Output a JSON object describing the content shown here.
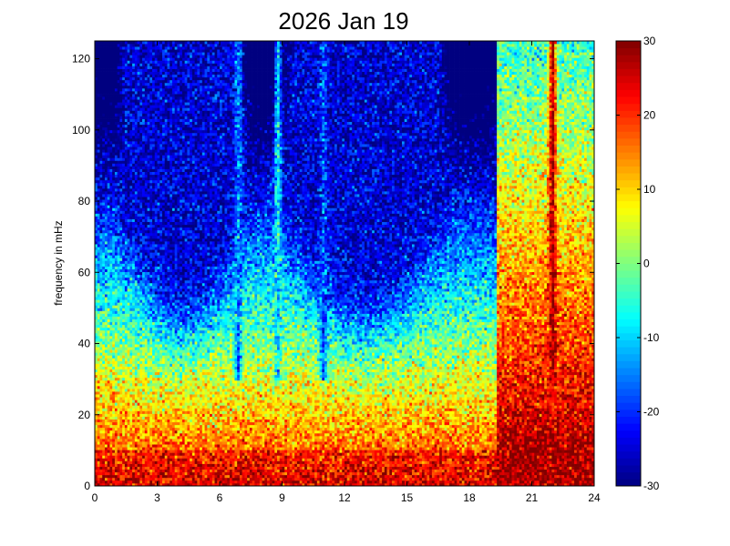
{
  "chart_data": {
    "type": "heatmap",
    "title": "2026 Jan 19",
    "xlabel": "",
    "ylabel": "frequency in mHz",
    "xlim": [
      0,
      24
    ],
    "ylim": [
      0,
      125
    ],
    "x_ticks": [
      "0",
      "3",
      "6",
      "9",
      "12",
      "15",
      "18",
      "21",
      "24"
    ],
    "y_ticks": [
      "0",
      "20",
      "40",
      "60",
      "80",
      "100",
      "120"
    ],
    "colorbar": {
      "range": [
        -30,
        30
      ],
      "ticks": [
        "-30",
        "-20",
        "-10",
        "0",
        "10",
        "20",
        "30"
      ],
      "colormap": "jet"
    },
    "grid": false,
    "x_range_hours": [
      0,
      24
    ],
    "y_range_mhz": [
      0,
      125
    ],
    "quiet_bands_hours": [
      [
        1.5,
        7.0
      ],
      [
        9.5,
        16.5
      ]
    ],
    "quiet_band_level": -25,
    "low_frequency_level": 25,
    "disturbed_interval_hours": [
      19.3,
      24
    ],
    "disturbed_level": 28,
    "narrow_features": [
      {
        "x": 6.9,
        "level": -14
      },
      {
        "x": 8.8,
        "level": -8
      },
      {
        "x": 11.0,
        "level": -18
      },
      {
        "x": 22.0,
        "level": 28
      }
    ]
  },
  "colors": {
    "background": "#ffffff",
    "axis": "#000000"
  }
}
